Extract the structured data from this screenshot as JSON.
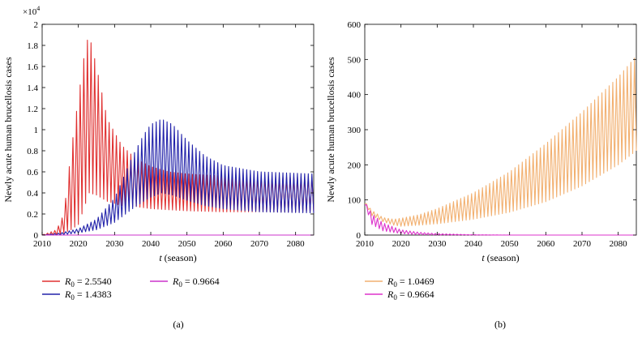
{
  "chart_data": [
    {
      "type": "line",
      "panel_label": "(a)",
      "ylabel": "Newly acute human brucellosis cases",
      "xlabel_var": "t",
      "xlabel_unit": "(season)",
      "y_exponent_prefix": "×10",
      "y_exponent": "4",
      "xlim": [
        2010,
        2085
      ],
      "ylim": [
        0,
        2
      ],
      "xticks": [
        "2010",
        "2020",
        "2030",
        "2040",
        "2050",
        "2060",
        "2070",
        "2080"
      ],
      "yticks": [
        "0",
        "0.2",
        "0.4",
        "0.6",
        "0.8",
        "1",
        "1.2",
        "1.4",
        "1.6",
        "1.8",
        "2"
      ],
      "oscillation_period": 1,
      "series": [
        {
          "name_var": "R",
          "name_sub": "0",
          "name_value": "= 2.5540",
          "color": "#e03030",
          "x": [
            2010,
            2014,
            2016,
            2018,
            2020,
            2022,
            2023,
            2025,
            2028,
            2032,
            2036,
            2040,
            2045,
            2050,
            2060,
            2070,
            2085
          ],
          "upper": [
            0.0,
            0.05,
            0.2,
            0.8,
            1.3,
            1.8,
            1.9,
            1.6,
            1.1,
            0.85,
            0.72,
            0.65,
            0.6,
            0.58,
            0.56,
            0.55,
            0.55
          ],
          "lower": [
            0.0,
            0.0,
            0.02,
            0.05,
            0.1,
            0.3,
            0.4,
            0.38,
            0.32,
            0.28,
            0.27,
            0.25,
            0.24,
            0.23,
            0.22,
            0.22,
            0.22
          ]
        },
        {
          "name_var": "R",
          "name_sub": "0",
          "name_value": "= 1.4383",
          "color": "#2222aa",
          "x": [
            2010,
            2015,
            2020,
            2025,
            2030,
            2035,
            2038,
            2040,
            2043,
            2046,
            2050,
            2055,
            2060,
            2070,
            2085
          ],
          "upper": [
            0.0,
            0.02,
            0.06,
            0.15,
            0.35,
            0.75,
            0.95,
            1.05,
            1.1,
            1.05,
            0.9,
            0.75,
            0.66,
            0.6,
            0.58
          ],
          "lower": [
            0.0,
            0.0,
            0.02,
            0.05,
            0.12,
            0.25,
            0.32,
            0.36,
            0.4,
            0.38,
            0.33,
            0.28,
            0.25,
            0.22,
            0.21
          ]
        },
        {
          "name_var": "R",
          "name_sub": "0",
          "name_value": "= 0.9664",
          "color": "#cc33cc",
          "x": [
            2010,
            2085
          ],
          "upper": [
            0.0,
            0.0
          ],
          "lower": [
            0.0,
            0.0
          ]
        }
      ]
    },
    {
      "type": "line",
      "panel_label": "(b)",
      "ylabel": "Newly acute human brucellosis cases",
      "xlabel_var": "t",
      "xlabel_unit": "(season)",
      "xlim": [
        2010,
        2085
      ],
      "ylim": [
        0,
        600
      ],
      "xticks": [
        "2010",
        "2020",
        "2030",
        "2040",
        "2050",
        "2060",
        "2070",
        "2080"
      ],
      "yticks": [
        "0",
        "100",
        "200",
        "300",
        "400",
        "500",
        "600"
      ],
      "oscillation_period": 1,
      "series": [
        {
          "name_var": "R",
          "name_sub": "0",
          "name_value": "= 1.0469",
          "color": "#f2b070",
          "x": [
            2010,
            2012,
            2015,
            2018,
            2020,
            2025,
            2030,
            2040,
            2050,
            2060,
            2070,
            2080,
            2085
          ],
          "upper": [
            95,
            70,
            50,
            45,
            48,
            58,
            75,
            120,
            180,
            260,
            350,
            450,
            510
          ],
          "lower": [
            90,
            55,
            38,
            28,
            25,
            28,
            32,
            45,
            65,
            95,
            140,
            200,
            240
          ]
        },
        {
          "name_var": "R",
          "name_sub": "0",
          "name_value": "= 0.9664",
          "color": "#dd33cc",
          "x": [
            2010,
            2012,
            2015,
            2020,
            2025,
            2030,
            2040,
            2050,
            2085
          ],
          "upper": [
            95,
            60,
            35,
            15,
            8,
            4,
            1,
            0,
            0
          ],
          "lower": [
            85,
            30,
            12,
            4,
            1,
            0,
            0,
            0,
            0
          ]
        }
      ]
    }
  ]
}
